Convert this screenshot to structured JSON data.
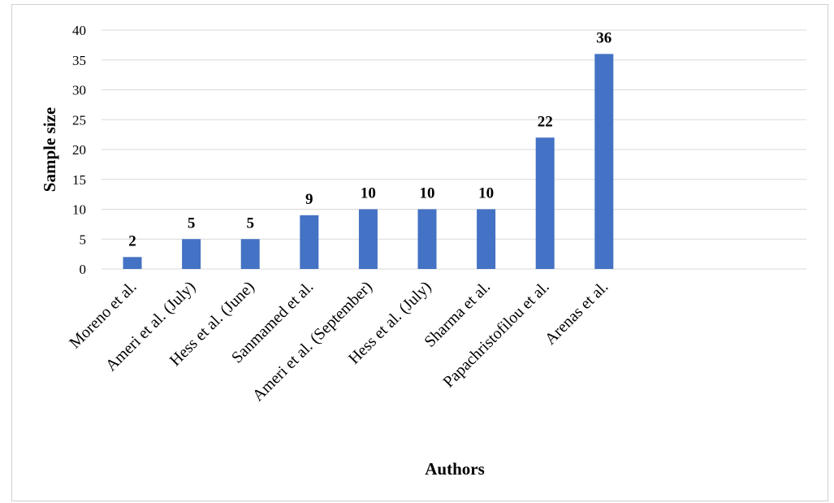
{
  "chart_data": {
    "type": "bar",
    "categories": [
      "Moreno et al.",
      "Ameri et al. (July)",
      "Hess et al. (June)",
      "Sanmamed et al.",
      "Ameri et al. (September)",
      "Hess et al. (July)",
      "Sharma et al.",
      "Papachristofilou et al.",
      "Arenas et al."
    ],
    "values": [
      2,
      5,
      5,
      9,
      10,
      10,
      10,
      22,
      36
    ],
    "data_labels": [
      "2",
      "5",
      "5",
      "9",
      "10",
      "10",
      "10",
      "22",
      "36"
    ],
    "xlabel": "Authors",
    "ylabel": "Sample size",
    "ylim": [
      0,
      40
    ],
    "yticks": [
      "0",
      "5",
      "10",
      "15",
      "20",
      "25",
      "30",
      "35",
      "40"
    ],
    "grid": true,
    "legend": "none",
    "bar_color": "#4472C4",
    "grid_color": "#d9d9d9"
  }
}
